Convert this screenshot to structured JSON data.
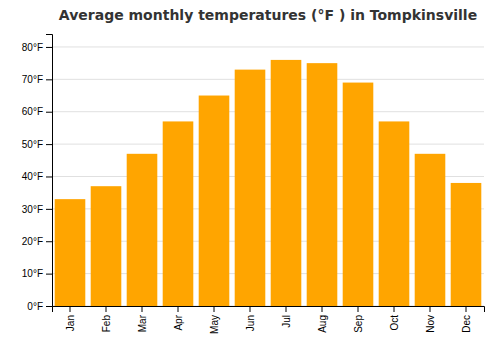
{
  "chart_data": {
    "type": "bar",
    "title": "Average monthly temperatures (°F ) in Tompkinsville",
    "categories": [
      "Jan",
      "Feb",
      "Mar",
      "Apr",
      "May",
      "Jun",
      "Jul",
      "Aug",
      "Sep",
      "Oct",
      "Nov",
      "Dec"
    ],
    "values": [
      33,
      37,
      47,
      57,
      65,
      73,
      76,
      75,
      69,
      57,
      47,
      38
    ],
    "color": "#FFA500",
    "ylim": [
      0,
      84
    ],
    "yticks": [
      {
        "value": 0,
        "label": "0°F"
      },
      {
        "value": 10,
        "label": "10°F"
      },
      {
        "value": 20,
        "label": "20°F"
      },
      {
        "value": 30,
        "label": "30°F"
      },
      {
        "value": 40,
        "label": "40°F"
      },
      {
        "value": 50,
        "label": "50°F"
      },
      {
        "value": 60,
        "label": "60°F"
      },
      {
        "value": 70,
        "label": "70°F"
      },
      {
        "value": 80,
        "label": "80°F"
      }
    ],
    "grid": true
  }
}
